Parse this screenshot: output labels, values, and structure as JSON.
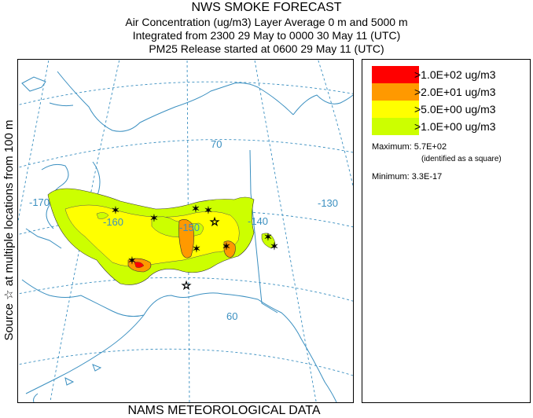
{
  "header": {
    "title": "NWS SMOKE FORECAST",
    "line2": "Air Concentration (ug/m3) Layer Average     0 m and  5000 m",
    "line3": "Integrated from 2300 29 May to 0000 30 May 11 (UTC)",
    "line4": "PM25 Release started at 0600 29 May 11 (UTC)"
  },
  "side_label": "Source ☆ at multiple locations   from   100 m",
  "footer": "NAMS METEOROLOGICAL DATA",
  "legend": {
    "items": [
      {
        "label": ">1.0E+02 ug/m3",
        "color": "#ff0000"
      },
      {
        "label": ">2.0E+01 ug/m3",
        "color": "#ff9900"
      },
      {
        "label": ">5.0E+00 ug/m3",
        "color": "#ffff00"
      },
      {
        "label": ">1.0E+00 ug/m3",
        "color": "#ccff00"
      }
    ],
    "maximum_label": "Maximum: 5.7E+02",
    "maximum_note": "(identified as a square)",
    "minimum_label": "Minimum: 3.3E-17"
  },
  "map": {
    "grid_labels": {
      "lat70": "70",
      "lat60": "60",
      "lon_m170": "-170",
      "lon_m160": "-160",
      "lon_m150": "-150",
      "lon_m140": "-140",
      "lon_m130": "-130"
    },
    "colors": {
      "grid": "#3a8fc0",
      "coast": "#3a8fc0",
      "plume_light": "#ccff00",
      "plume_yellow": "#ffff00",
      "plume_orange": "#ff9900",
      "plume_red": "#ff0000"
    }
  }
}
